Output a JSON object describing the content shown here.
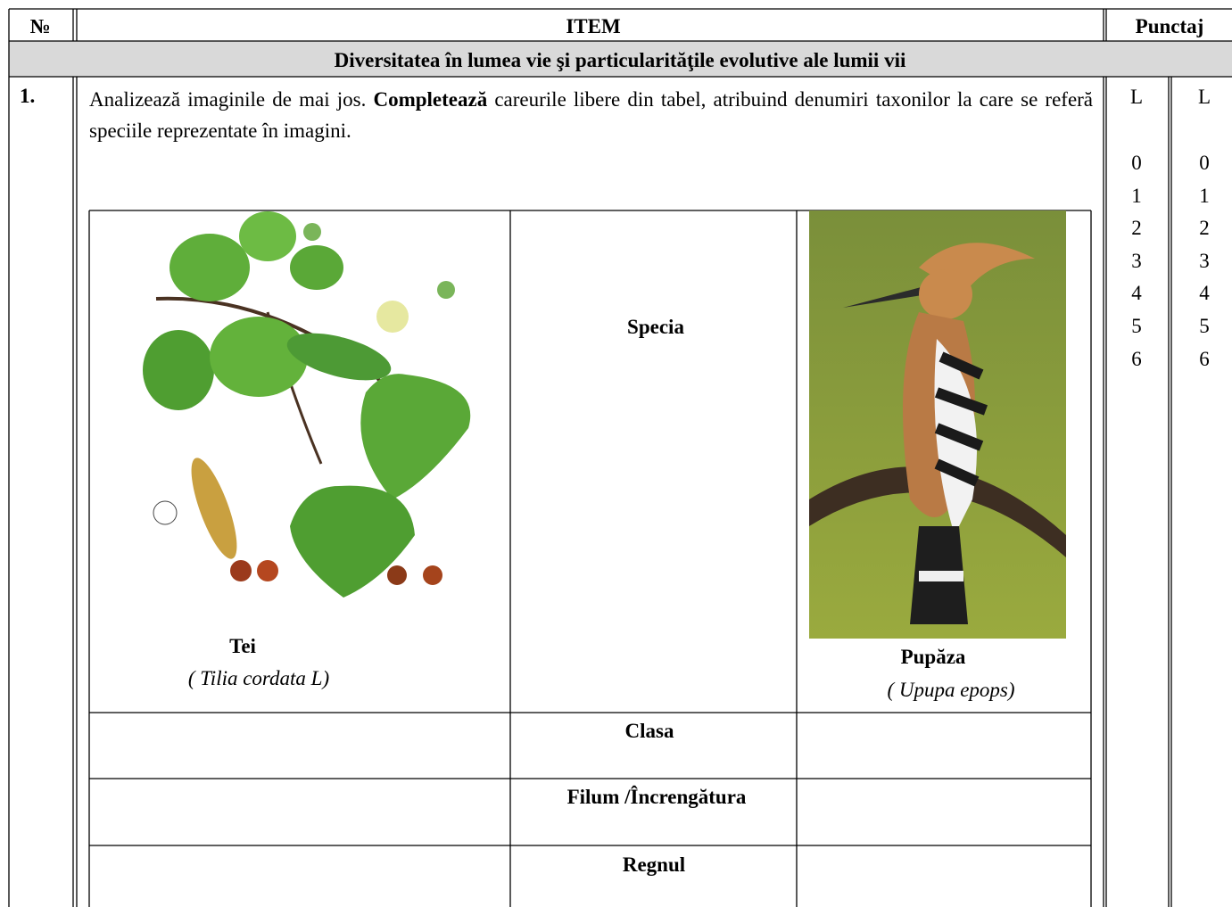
{
  "header": {
    "number": "№",
    "item": "ITEM",
    "score": "Punctaj"
  },
  "section_title": "Diversitatea în lumea vie şi particularităţile evolutive ale lumii vii",
  "item": {
    "number": "1.",
    "instruction": [
      "Analizează imaginile de mai jos.",
      "Completează",
      "careurile libere din tabel, atribuind denumiri taxonilor la care se referă speciile reprezentate în imagini."
    ],
    "table": {
      "plant": {
        "name": "Tei",
        "latin": "( Tilia cordata L)"
      },
      "header": "Specia",
      "bird": {
        "name": "Pupăza",
        "latin": "( Upupa epops)"
      },
      "rows": [
        "Clasa",
        "Filum /Încrengătura",
        "Regnul"
      ]
    }
  },
  "score_columns": [
    {
      "label": "L",
      "levels": [
        "0",
        "1",
        "2",
        "3",
        "4",
        "5",
        "6"
      ]
    },
    {
      "label": "L",
      "levels": [
        "0",
        "1",
        "2",
        "3",
        "4",
        "5",
        "6"
      ]
    }
  ]
}
